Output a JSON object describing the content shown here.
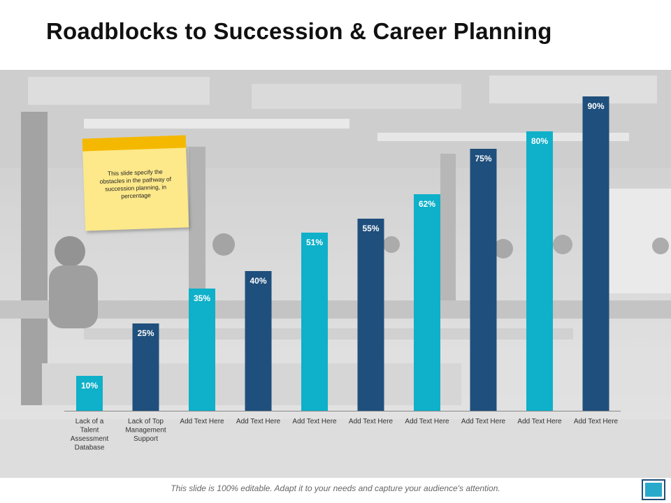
{
  "title": "Roadblocks to Succession & Career Planning",
  "sticky_note": "This slide specify the obstacles in the pathway of succession planning, in percentage",
  "footer": "This slide is 100% editable. Adapt it to your needs and capture your audience's attention.",
  "colors": {
    "light_bar": "#0fb0c9",
    "dark_bar": "#1f4f7c",
    "sticky_tape": "#f5b800",
    "sticky_paper": "#fde98a",
    "label_text": "#ffffff"
  },
  "chart_data": {
    "type": "bar",
    "categories": [
      "Lack of a Talent Assessment Database",
      "Lack of Top Management Support",
      "Add Text Here",
      "Add Text Here",
      "Add Text Here",
      "Add Text Here",
      "Add Text Here",
      "Add Text Here",
      "Add Text Here",
      "Add Text Here"
    ],
    "category_lines": [
      [
        "Lack of a",
        "Talent",
        "Assessment",
        "Database"
      ],
      [
        "Lack of Top",
        "Management",
        "Support"
      ],
      [
        "Add Text Here"
      ],
      [
        "Add Text Here"
      ],
      [
        "Add Text Here"
      ],
      [
        "Add Text Here"
      ],
      [
        "Add Text Here"
      ],
      [
        "Add Text Here"
      ],
      [
        "Add Text Here"
      ],
      [
        "Add Text Here"
      ]
    ],
    "values": [
      10,
      25,
      35,
      40,
      51,
      55,
      62,
      75,
      80,
      90
    ],
    "data_labels": [
      "10%",
      "25%",
      "35%",
      "40%",
      "51%",
      "55%",
      "62%",
      "75%",
      "80%",
      "90%"
    ],
    "bar_colors": [
      "light",
      "dark",
      "light",
      "dark",
      "light",
      "dark",
      "light",
      "dark",
      "light",
      "dark"
    ],
    "ylim": [
      0,
      100
    ],
    "grid": false,
    "legend": "none"
  }
}
